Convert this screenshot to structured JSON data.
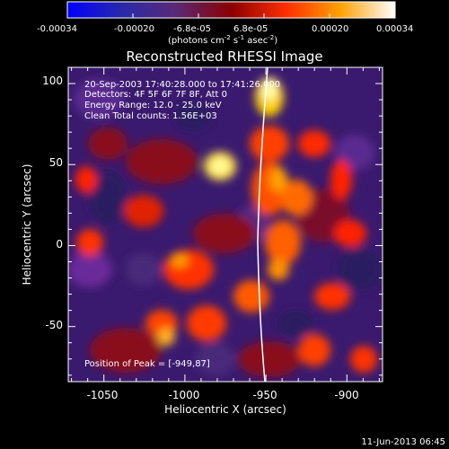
{
  "colorbar": {
    "tick_labels": [
      "-0.00034",
      "-0.00020",
      "-6.8e-05",
      "6.8e-05",
      "0.00020",
      "0.00034"
    ],
    "unit_prefix": "(photons cm",
    "unit_exp1": "-2",
    "unit_mid1": " s",
    "unit_exp2": "-1",
    "unit_mid2": " asec",
    "unit_exp3": "-2",
    "unit_suffix": ")"
  },
  "plot": {
    "title": "Reconstructed RHESSI Image",
    "xlabel": "Heliocentric X (arcsec)",
    "ylabel": "Heliocentric Y (arcsec)",
    "x_tick_labels": [
      "-1050",
      "-1000",
      "-950",
      "-900"
    ],
    "y_tick_labels": [
      "100",
      "50",
      "0",
      "-50"
    ],
    "xlim": [
      -1072,
      -878
    ],
    "ylim": [
      -84,
      110
    ]
  },
  "annotations": {
    "time_range": "20-Sep-2003 17:40:28.000 to 17:41:26.000",
    "detectors": "Detectors: 4F 5F 6F 7F 8F, Att 0",
    "energy": "Energy Range: 12.0 - 25.0 keV",
    "method": "Clean     Total counts: 1.56E+03",
    "peak": "Position of Peak = [-949,87]"
  },
  "footer": {
    "timestamp": "11-Jun-2013 06:45"
  }
}
